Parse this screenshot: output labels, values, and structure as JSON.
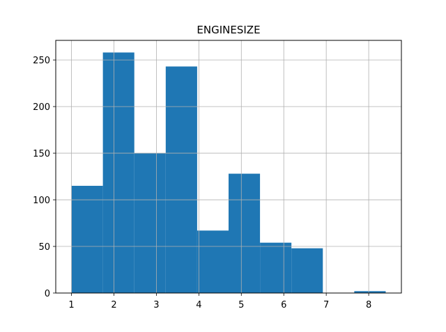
{
  "chart_data": {
    "type": "bar",
    "title": "ENGINESIZE",
    "xlabel": "",
    "ylabel": "",
    "grid": true,
    "bar_color": "#1f77b4",
    "grid_color": "#b0b0b0",
    "xlim": [
      0.63,
      8.77
    ],
    "ylim": [
      0,
      271
    ],
    "x_ticks": [
      1,
      2,
      3,
      4,
      5,
      6,
      7,
      8
    ],
    "y_ticks": [
      0,
      50,
      100,
      150,
      200,
      250
    ],
    "bin_edges": [
      1.0,
      1.74,
      2.48,
      3.22,
      3.96,
      4.7,
      5.44,
      6.18,
      6.92,
      7.66,
      8.4
    ],
    "values": [
      115,
      258,
      150,
      243,
      67,
      128,
      54,
      48,
      0,
      2
    ]
  }
}
